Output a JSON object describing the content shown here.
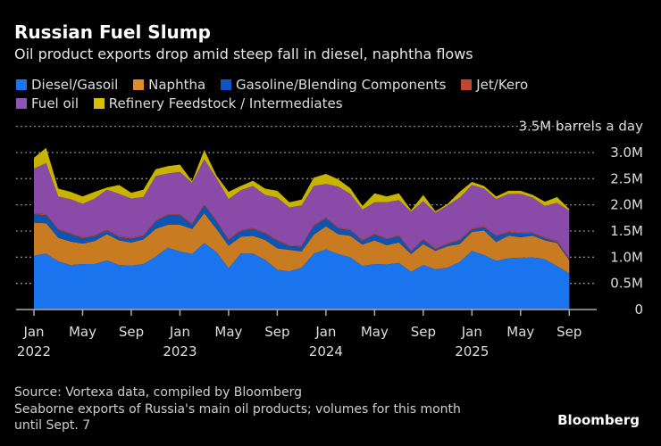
{
  "header": {
    "title": "Russian Fuel Slump",
    "subtitle": "Oil product exports drop amid steep fall in diesel, naphtha flows"
  },
  "footer": {
    "source": "Source: Vortexa data, compiled by Bloomberg",
    "note_line1": "Seaborne exports of Russia's main oil products; volumes for this month",
    "note_line2": "until Sept. 7",
    "logo": "Bloomberg"
  },
  "chart_data": {
    "type": "area",
    "stacked": true,
    "title": "Russian Fuel Slump",
    "subtitle": "Oil product exports drop amid steep fall in diesel, naphtha flows",
    "ylabel": "3.5M barrels a day",
    "ylim": [
      0,
      3.5
    ],
    "yticks": [
      "0",
      "0.5M",
      "1.0M",
      "1.5M",
      "2.0M",
      "2.5M",
      "3.0M",
      "3.5M barrels a day"
    ],
    "ytick_values": [
      0,
      0.5,
      1.0,
      1.5,
      2.0,
      2.5,
      3.0,
      3.5
    ],
    "grid": true,
    "legend_placement": "top",
    "x_start": "2022-01",
    "x_end": "2025-09",
    "xticks": [
      {
        "month": "Jan",
        "year": "2022"
      },
      {
        "month": "May",
        "year": ""
      },
      {
        "month": "Sep",
        "year": ""
      },
      {
        "month": "Jan",
        "year": "2023"
      },
      {
        "month": "May",
        "year": ""
      },
      {
        "month": "Sep",
        "year": ""
      },
      {
        "month": "Jan",
        "year": "2024"
      },
      {
        "month": "May",
        "year": ""
      },
      {
        "month": "Sep",
        "year": ""
      },
      {
        "month": "Jan",
        "year": "2025"
      },
      {
        "month": "May",
        "year": ""
      },
      {
        "month": "Sep",
        "year": ""
      }
    ],
    "series": [
      {
        "name": "Diesel/Gasoil",
        "color": "#1a74ee",
        "values": [
          1.03,
          1.07,
          0.92,
          0.85,
          0.87,
          0.87,
          0.94,
          0.85,
          0.84,
          0.87,
          1.01,
          1.18,
          1.11,
          1.06,
          1.27,
          1.1,
          0.79,
          1.07,
          1.07,
          0.95,
          0.76,
          0.73,
          0.8,
          1.07,
          1.15,
          1.06,
          1.0,
          0.83,
          0.87,
          0.86,
          0.89,
          0.72,
          0.85,
          0.77,
          0.8,
          0.91,
          1.12,
          1.04,
          0.93,
          0.98,
          0.99,
          1.0,
          0.96,
          0.83,
          0.69
        ]
      },
      {
        "name": "Naphtha",
        "color": "#c97b22",
        "values": [
          0.63,
          0.58,
          0.45,
          0.45,
          0.39,
          0.44,
          0.5,
          0.47,
          0.44,
          0.47,
          0.53,
          0.44,
          0.51,
          0.48,
          0.57,
          0.44,
          0.43,
          0.32,
          0.34,
          0.38,
          0.41,
          0.41,
          0.31,
          0.36,
          0.44,
          0.38,
          0.41,
          0.41,
          0.45,
          0.37,
          0.39,
          0.34,
          0.4,
          0.35,
          0.41,
          0.34,
          0.36,
          0.47,
          0.36,
          0.43,
          0.39,
          0.41,
          0.36,
          0.44,
          0.25
        ]
      },
      {
        "name": "Gasoline/Blending Components",
        "color": "#0d55b5",
        "values": [
          0.16,
          0.15,
          0.15,
          0.14,
          0.1,
          0.09,
          0.07,
          0.06,
          0.07,
          0.06,
          0.14,
          0.18,
          0.18,
          0.08,
          0.15,
          0.14,
          0.1,
          0.11,
          0.13,
          0.12,
          0.14,
          0.07,
          0.09,
          0.16,
          0.15,
          0.11,
          0.1,
          0.07,
          0.11,
          0.11,
          0.12,
          0.04,
          0.08,
          0.03,
          0.04,
          0.07,
          0.05,
          0.06,
          0.11,
          0.06,
          0.07,
          0.04,
          0.04,
          0.02,
          0.03
        ]
      },
      {
        "name": "Jet/Kero",
        "color": "#b5432f",
        "values": [
          0.02,
          0.02,
          0.02,
          0.02,
          0.02,
          0.02,
          0.02,
          0.02,
          0.02,
          0.02,
          0.02,
          0.02,
          0.02,
          0.02,
          0.02,
          0.02,
          0.02,
          0.02,
          0.02,
          0.02,
          0.02,
          0.02,
          0.02,
          0.02,
          0.02,
          0.02,
          0.02,
          0.02,
          0.02,
          0.02,
          0.02,
          0.02,
          0.02,
          0.02,
          0.02,
          0.02,
          0.02,
          0.02,
          0.02,
          0.02,
          0.02,
          0.02,
          0.02,
          0.02,
          0.02
        ]
      },
      {
        "name": "Fuel oil",
        "color": "#8a4ba8",
        "values": [
          0.85,
          0.98,
          0.62,
          0.65,
          0.64,
          0.7,
          0.76,
          0.81,
          0.75,
          0.73,
          0.85,
          0.78,
          0.81,
          0.78,
          0.86,
          0.81,
          0.77,
          0.76,
          0.8,
          0.72,
          0.81,
          0.72,
          0.77,
          0.75,
          0.64,
          0.78,
          0.68,
          0.58,
          0.6,
          0.69,
          0.67,
          0.75,
          0.72,
          0.68,
          0.72,
          0.8,
          0.83,
          0.72,
          0.69,
          0.72,
          0.74,
          0.67,
          0.6,
          0.73,
          0.9
        ]
      },
      {
        "name": "Refinery Feedstock / Intermediates",
        "color": "#c8b400",
        "values": [
          0.21,
          0.29,
          0.15,
          0.14,
          0.14,
          0.13,
          0.04,
          0.17,
          0.11,
          0.14,
          0.13,
          0.14,
          0.14,
          0.03,
          0.18,
          0.05,
          0.14,
          0.08,
          0.1,
          0.12,
          0.13,
          0.1,
          0.11,
          0.16,
          0.19,
          0.14,
          0.11,
          0.07,
          0.17,
          0.11,
          0.13,
          0.03,
          0.12,
          0.03,
          0.03,
          0.11,
          0.06,
          0.05,
          0.05,
          0.06,
          0.06,
          0.05,
          0.08,
          0.11,
          0.03
        ]
      }
    ]
  }
}
